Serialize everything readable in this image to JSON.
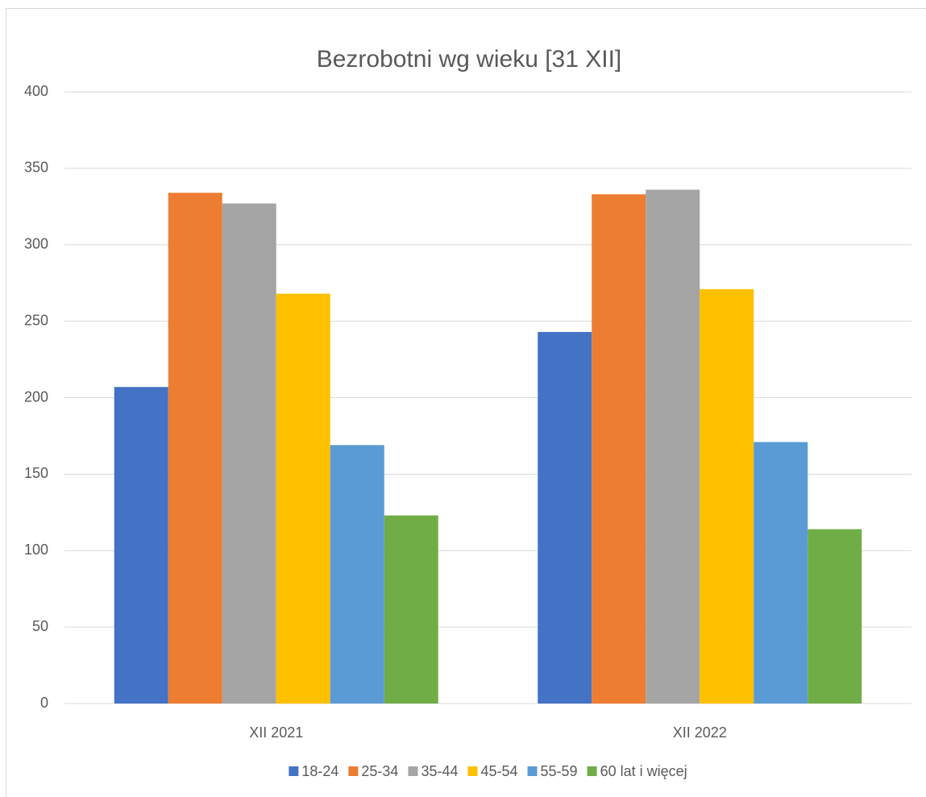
{
  "chart_data": {
    "type": "bar",
    "title": "Bezrobotni wg wieku [31 XII]",
    "categories": [
      "XII 2021",
      "XII 2022"
    ],
    "series": [
      {
        "name": "18-24",
        "color": "#4472c4",
        "values": [
          207,
          243
        ]
      },
      {
        "name": "25-34",
        "color": "#ed7d31",
        "values": [
          334,
          333
        ]
      },
      {
        "name": "35-44",
        "color": "#a5a5a5",
        "values": [
          327,
          336
        ]
      },
      {
        "name": "45-54",
        "color": "#ffc000",
        "values": [
          268,
          271
        ]
      },
      {
        "name": "55-59",
        "color": "#5b9bd5",
        "values": [
          169,
          171
        ]
      },
      {
        "name": "60 lat i więcej",
        "color": "#70ad47",
        "values": [
          123,
          114
        ]
      }
    ],
    "ylim": [
      0,
      400
    ],
    "yticks": [
      0,
      50,
      100,
      150,
      200,
      250,
      300,
      350,
      400
    ],
    "grid": true,
    "legend": "bottom"
  }
}
